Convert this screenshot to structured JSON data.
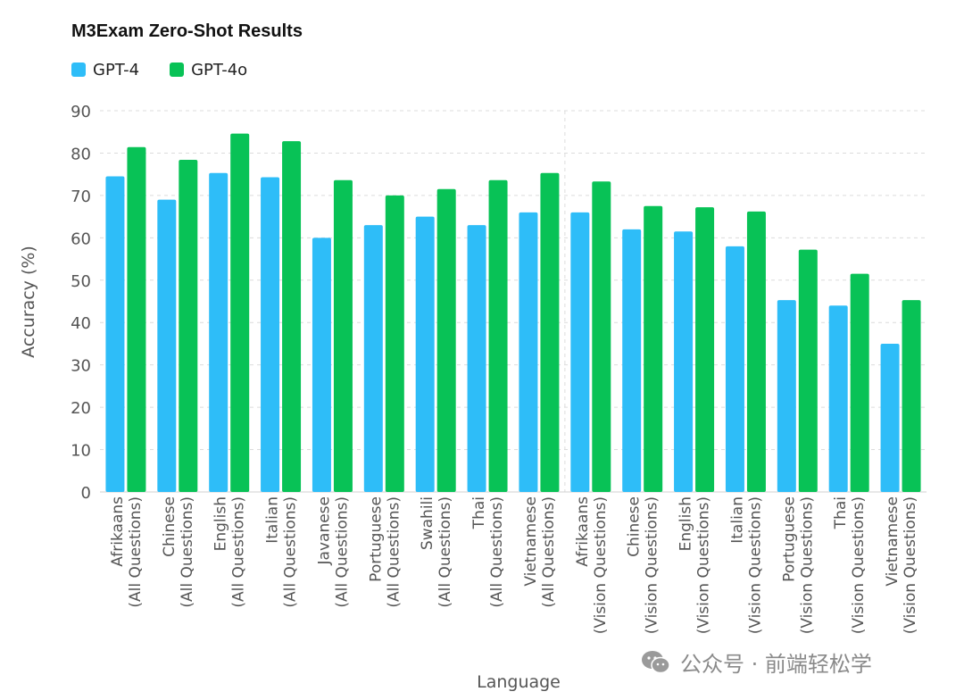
{
  "chart_data": {
    "type": "bar",
    "title": "M3Exam Zero-Shot Results",
    "xlabel": "Language",
    "ylabel": "Accuracy (%)",
    "ylim": [
      0,
      90
    ],
    "yticks": [
      0,
      10,
      20,
      30,
      40,
      50,
      60,
      70,
      80,
      90
    ],
    "grid": true,
    "legend_position": "top-left",
    "categories": [
      [
        "Afrikaans",
        "(All Questions)"
      ],
      [
        "Chinese",
        "(All Questions)"
      ],
      [
        "English",
        "(All Questions)"
      ],
      [
        "Italian",
        "(All Questions)"
      ],
      [
        "Javanese",
        "(All Questions)"
      ],
      [
        "Portuguese",
        "(All Questions)"
      ],
      [
        "Swahili",
        "(All Questions)"
      ],
      [
        "Thai",
        "(All Questions)"
      ],
      [
        "Vietnamese",
        "(All Questions)"
      ],
      [
        "Afrikaans",
        "(Vision Questions)"
      ],
      [
        "Chinese",
        "(Vision Questions)"
      ],
      [
        "English",
        "(Vision Questions)"
      ],
      [
        "Italian",
        "(Vision Questions)"
      ],
      [
        "Portuguese",
        "(Vision Questions)"
      ],
      [
        "Thai",
        "(Vision Questions)"
      ],
      [
        "Vietnamese",
        "(Vision Questions)"
      ]
    ],
    "series": [
      {
        "name": "GPT-4",
        "color": "#2ebdf8",
        "values": [
          74.5,
          69,
          75.3,
          74.3,
          60,
          63,
          65,
          63,
          66,
          66,
          62,
          61.5,
          58,
          45.3,
          44,
          35
        ]
      },
      {
        "name": "GPT-4o",
        "color": "#08c256",
        "values": [
          81.4,
          78.4,
          84.6,
          82.8,
          73.6,
          70,
          71.5,
          73.6,
          75.3,
          73.3,
          67.5,
          67.2,
          66.2,
          57.2,
          51.5,
          45.3
        ]
      }
    ]
  },
  "watermark": {
    "icon": "wechat-icon",
    "text": "公众号 · 前端轻松学"
  }
}
